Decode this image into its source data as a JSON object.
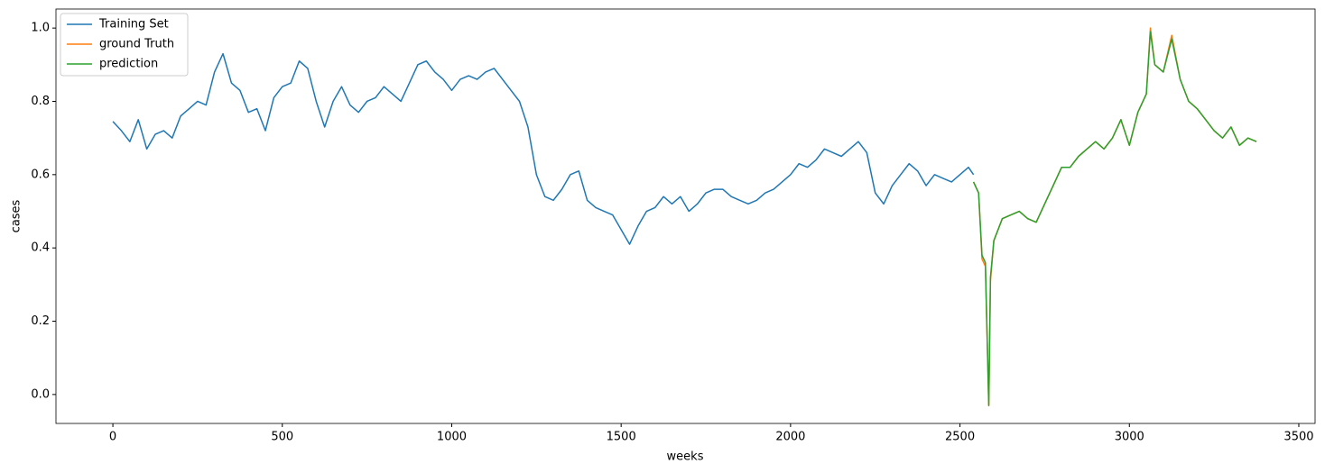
{
  "chart_data": {
    "type": "line",
    "xlabel": "weeks",
    "ylabel": "cases",
    "xlim": [
      -168,
      3548
    ],
    "ylim": [
      -0.079,
      1.052
    ],
    "xticks": [
      0,
      500,
      1000,
      1500,
      2000,
      2500,
      3000,
      3500
    ],
    "yticks": [
      {
        "value": 0,
        "label": "0.0"
      },
      {
        "value": 0.2,
        "label": "0.2"
      },
      {
        "value": 0.4,
        "label": "0.4"
      },
      {
        "value": 0.6,
        "label": "0.6"
      },
      {
        "value": 0.8,
        "label": "0.8"
      },
      {
        "value": 1.0,
        "label": "1.0"
      }
    ],
    "legend": "upper-left",
    "series": [
      {
        "name": "Training Set",
        "color": "#1f77b4",
        "x": [
          0,
          25,
          50,
          75,
          100,
          125,
          150,
          175,
          200,
          225,
          250,
          275,
          300,
          325,
          350,
          375,
          400,
          425,
          450,
          475,
          500,
          525,
          550,
          575,
          600,
          625,
          650,
          675,
          700,
          725,
          750,
          775,
          800,
          825,
          850,
          875,
          900,
          925,
          950,
          975,
          1000,
          1025,
          1050,
          1075,
          1100,
          1125,
          1150,
          1175,
          1200,
          1225,
          1250,
          1275,
          1300,
          1325,
          1350,
          1375,
          1400,
          1425,
          1450,
          1475,
          1500,
          1525,
          1550,
          1575,
          1600,
          1625,
          1650,
          1675,
          1700,
          1725,
          1750,
          1775,
          1800,
          1825,
          1850,
          1875,
          1900,
          1925,
          1950,
          1975,
          2000,
          2025,
          2050,
          2075,
          2100,
          2125,
          2150,
          2175,
          2200,
          2225,
          2250,
          2275,
          2300,
          2325,
          2350,
          2375,
          2400,
          2425,
          2450,
          2475,
          2500,
          2525,
          2540
        ],
        "values": [
          0.745,
          0.72,
          0.69,
          0.75,
          0.67,
          0.71,
          0.72,
          0.7,
          0.76,
          0.78,
          0.8,
          0.79,
          0.88,
          0.93,
          0.85,
          0.83,
          0.77,
          0.78,
          0.72,
          0.81,
          0.84,
          0.85,
          0.91,
          0.89,
          0.8,
          0.73,
          0.8,
          0.84,
          0.79,
          0.77,
          0.8,
          0.81,
          0.84,
          0.82,
          0.8,
          0.85,
          0.9,
          0.91,
          0.88,
          0.86,
          0.83,
          0.86,
          0.87,
          0.86,
          0.88,
          0.89,
          0.86,
          0.83,
          0.8,
          0.73,
          0.6,
          0.54,
          0.53,
          0.56,
          0.6,
          0.61,
          0.53,
          0.51,
          0.5,
          0.49,
          0.45,
          0.41,
          0.46,
          0.5,
          0.51,
          0.54,
          0.52,
          0.54,
          0.5,
          0.52,
          0.55,
          0.56,
          0.56,
          0.54,
          0.53,
          0.52,
          0.53,
          0.55,
          0.56,
          0.58,
          0.6,
          0.63,
          0.62,
          0.64,
          0.67,
          0.66,
          0.65,
          0.67,
          0.69,
          0.66,
          0.55,
          0.52,
          0.57,
          0.6,
          0.63,
          0.61,
          0.57,
          0.6,
          0.59,
          0.58,
          0.6,
          0.62,
          0.6
        ]
      },
      {
        "name": "ground Truth",
        "color": "#ff7f0e",
        "x": [
          2540,
          2555,
          2565,
          2575,
          2585,
          2590,
          2600,
          2625,
          2650,
          2675,
          2700,
          2725,
          2750,
          2775,
          2800,
          2825,
          2850,
          2875,
          2900,
          2925,
          2950,
          2975,
          3000,
          3025,
          3050,
          3062,
          3075,
          3100,
          3125,
          3150,
          3175,
          3200,
          3225,
          3250,
          3275,
          3300,
          3325,
          3350,
          3375
        ],
        "values": [
          0.58,
          0.55,
          0.37,
          0.35,
          -0.03,
          0.31,
          0.42,
          0.48,
          0.49,
          0.5,
          0.48,
          0.47,
          0.52,
          0.57,
          0.62,
          0.62,
          0.65,
          0.67,
          0.69,
          0.67,
          0.7,
          0.75,
          0.68,
          0.77,
          0.82,
          1.0,
          0.9,
          0.88,
          0.98,
          0.86,
          0.8,
          0.78,
          0.75,
          0.72,
          0.7,
          0.73,
          0.68,
          0.7,
          0.69
        ]
      },
      {
        "name": "prediction",
        "color": "#2ca02c",
        "x": [
          2540,
          2555,
          2565,
          2575,
          2585,
          2590,
          2600,
          2625,
          2650,
          2675,
          2700,
          2725,
          2750,
          2775,
          2800,
          2825,
          2850,
          2875,
          2900,
          2925,
          2950,
          2975,
          3000,
          3025,
          3050,
          3062,
          3075,
          3100,
          3125,
          3150,
          3175,
          3200,
          3225,
          3250,
          3275,
          3300,
          3325,
          3350,
          3375
        ],
        "values": [
          0.58,
          0.55,
          0.38,
          0.36,
          -0.03,
          0.32,
          0.42,
          0.48,
          0.49,
          0.5,
          0.48,
          0.47,
          0.52,
          0.57,
          0.62,
          0.62,
          0.65,
          0.67,
          0.69,
          0.67,
          0.7,
          0.75,
          0.68,
          0.77,
          0.82,
          0.99,
          0.9,
          0.88,
          0.97,
          0.86,
          0.8,
          0.78,
          0.75,
          0.72,
          0.7,
          0.73,
          0.68,
          0.7,
          0.69
        ]
      }
    ]
  }
}
